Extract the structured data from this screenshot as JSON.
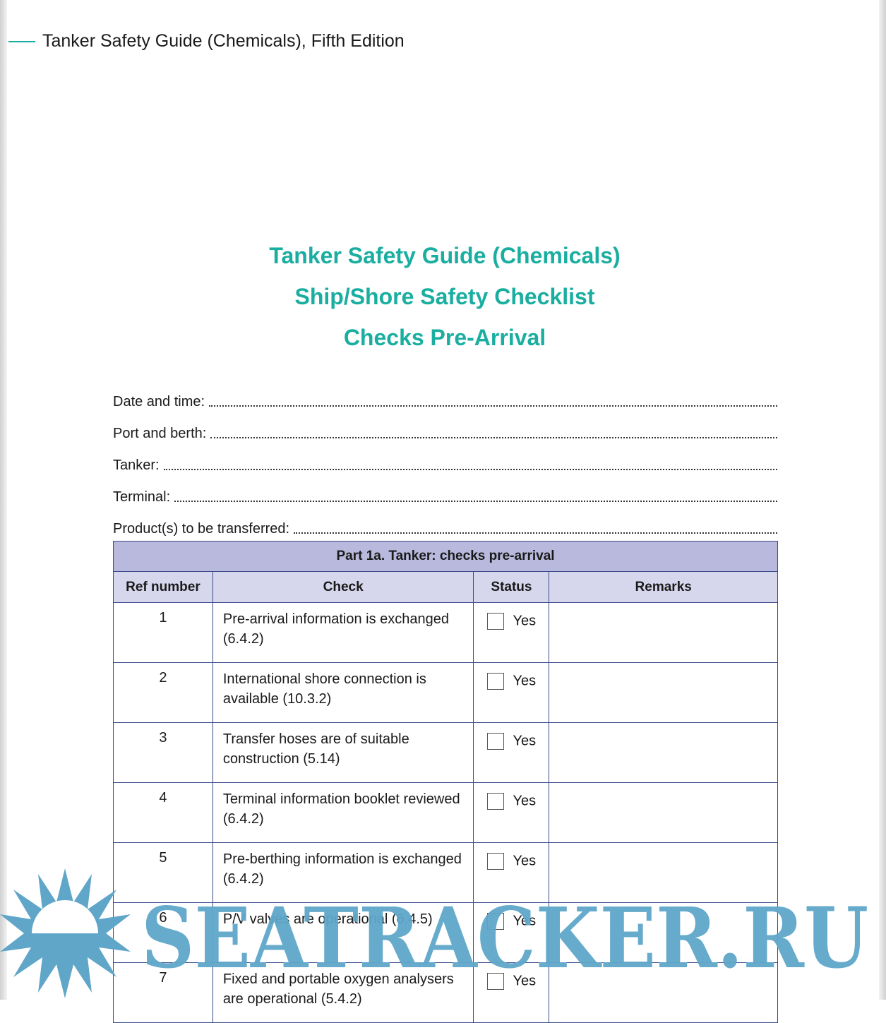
{
  "running_header": "Tanker Safety Guide (Chemicals), Fifth Edition",
  "titles": [
    "Tanker Safety Guide (Chemicals)",
    "Ship/Shore Safety Checklist",
    "Checks Pre-Arrival"
  ],
  "fields": [
    "Date and time:",
    "Port and berth:",
    "Tanker:",
    "Terminal:",
    "Product(s) to be transferred:"
  ],
  "table": {
    "caption": "Part 1a. Tanker: checks pre-arrival",
    "headers": [
      "Ref number",
      "Check",
      "Status",
      "Remarks"
    ],
    "rows": [
      {
        "ref": "1",
        "check": "Pre-arrival information is exchanged (6.4.2)",
        "status": "Yes",
        "remarks": ""
      },
      {
        "ref": "2",
        "check": "International shore connection is available (10.3.2)",
        "status": "Yes",
        "remarks": ""
      },
      {
        "ref": "3",
        "check": "Transfer hoses are of suitable construction (5.14)",
        "status": "Yes",
        "remarks": ""
      },
      {
        "ref": "4",
        "check": "Terminal information booklet reviewed (6.4.2)",
        "status": "Yes",
        "remarks": ""
      },
      {
        "ref": "5",
        "check": "Pre-berthing information is exchanged (6.4.2)",
        "status": "Yes",
        "remarks": ""
      },
      {
        "ref": "6",
        "check": "P/V valves are operational (6.4.5)",
        "status": "Yes",
        "remarks": ""
      },
      {
        "ref": "7",
        "check": "Fixed and portable oxygen analysers are operational (5.4.2)",
        "status": "Yes",
        "remarks": ""
      }
    ]
  },
  "watermark": "SEATRACKER.RU",
  "colors": {
    "accent": "#1aaea0",
    "caption_bg": "#b8b9dc",
    "header_bg": "#d6d6ec",
    "border": "#3a4a8a",
    "watermark": "#5fa6c9"
  }
}
